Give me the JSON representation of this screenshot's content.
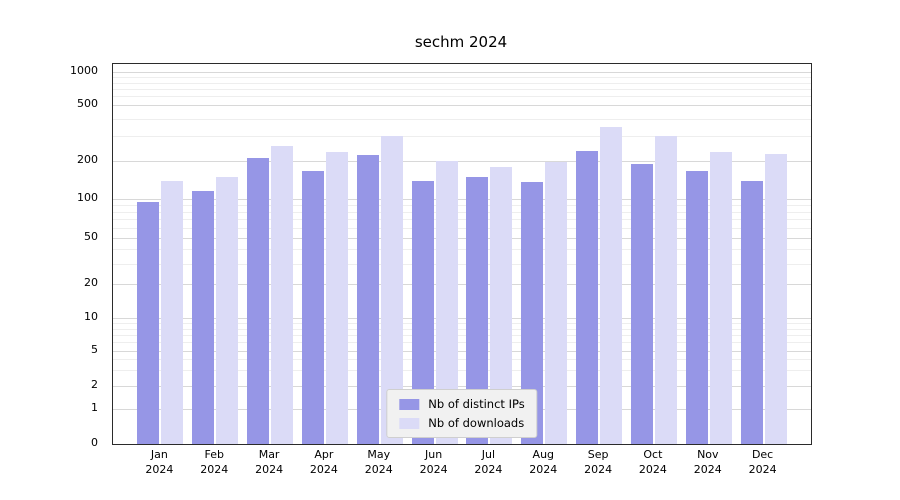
{
  "figure": {
    "background": "#ffffff",
    "frame_color": "#2b2b2b",
    "grid_major_color": "#d8d8d8",
    "grid_minor_color": "#eeeeee"
  },
  "chart_data": {
    "type": "bar",
    "title": "sechm 2024",
    "xlabel": "",
    "ylabel": "",
    "yscale": "log-like",
    "grid": true,
    "legend_position": "lower center",
    "categories": [
      "Jan",
      "Feb",
      "Mar",
      "Apr",
      "May",
      "Jun",
      "Jul",
      "Aug",
      "Sep",
      "Oct",
      "Nov",
      "Dec"
    ],
    "year": "2024",
    "series": [
      {
        "name": "Nb of distinct IPs",
        "color": "#9696e6",
        "values": [
          95,
          115,
          210,
          165,
          220,
          140,
          150,
          135,
          235,
          190,
          165,
          140
        ]
      },
      {
        "name": "Nb of downloads",
        "color": "#dbdbf7",
        "values": [
          140,
          150,
          255,
          230,
          300,
          200,
          180,
          195,
          350,
          300,
          230,
          225
        ]
      }
    ],
    "y_ticks": [
      0,
      1,
      2,
      5,
      10,
      20,
      50,
      100,
      200,
      500,
      1000
    ],
    "y_minor_ticks": [
      3,
      4,
      6,
      7,
      8,
      9,
      30,
      40,
      60,
      70,
      80,
      90,
      300,
      400,
      600,
      700,
      800,
      900
    ],
    "ylim": [
      0,
      1000
    ]
  }
}
